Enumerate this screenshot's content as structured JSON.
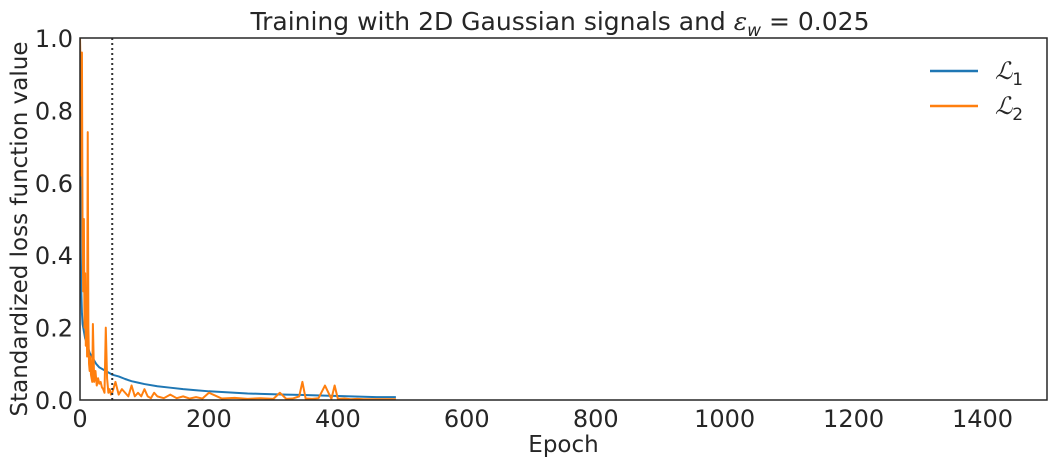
{
  "chart_data": {
    "type": "line",
    "title": "Training with 2D Gaussian signals and ε_w = 0.025",
    "title_parts": {
      "main": "Training with 2D Gaussian signals and ",
      "eps": "ε",
      "sub": "w",
      "eq": " = 0.025"
    },
    "xlabel": "Epoch",
    "ylabel": "Standardized loss function value",
    "xlim": [
      0,
      1500
    ],
    "ylim": [
      0,
      1.0
    ],
    "xticks": [
      0,
      200,
      400,
      600,
      800,
      1000,
      1200,
      1400
    ],
    "yticks": [
      0.0,
      0.2,
      0.4,
      0.6,
      0.8,
      1.0
    ],
    "ytick_labels": [
      "0.0",
      "0.2",
      "0.4",
      "0.6",
      "0.8",
      "1.0"
    ],
    "grid": false,
    "legend_position": "top-right",
    "vline": {
      "x": 50,
      "style": "dotted",
      "color": "#333333"
    },
    "series": [
      {
        "name": "ℒ₁",
        "name_parts": {
          "sym": "ℒ",
          "sub": "1"
        },
        "color": "#1f77b4",
        "x": [
          0,
          1,
          2,
          3,
          4,
          6,
          8,
          10,
          15,
          20,
          25,
          30,
          40,
          50,
          60,
          70,
          80,
          90,
          100,
          120,
          140,
          160,
          180,
          200,
          220,
          240,
          260,
          280,
          300,
          320,
          340,
          360,
          380,
          400,
          420,
          440,
          460,
          480,
          490
        ],
        "y": [
          1.0,
          0.45,
          0.3,
          0.24,
          0.21,
          0.19,
          0.17,
          0.16,
          0.13,
          0.115,
          0.1,
          0.09,
          0.08,
          0.07,
          0.065,
          0.058,
          0.052,
          0.048,
          0.044,
          0.038,
          0.034,
          0.03,
          0.027,
          0.024,
          0.022,
          0.02,
          0.018,
          0.017,
          0.016,
          0.015,
          0.014,
          0.013,
          0.012,
          0.011,
          0.01,
          0.009,
          0.008,
          0.008,
          0.008
        ]
      },
      {
        "name": "ℒ₂",
        "name_parts": {
          "sym": "ℒ",
          "sub": "2"
        },
        "color": "#ff7f0e",
        "x": [
          0,
          1,
          2,
          3,
          4,
          5,
          6,
          7,
          8,
          9,
          10,
          11,
          12,
          13,
          14,
          15,
          16,
          17,
          18,
          19,
          20,
          22,
          24,
          26,
          28,
          30,
          32,
          34,
          36,
          38,
          40,
          42,
          44,
          46,
          48,
          50,
          55,
          60,
          65,
          70,
          75,
          80,
          85,
          90,
          95,
          100,
          105,
          110,
          115,
          120,
          130,
          140,
          150,
          160,
          170,
          180,
          190,
          200,
          220,
          240,
          260,
          280,
          300,
          310,
          320,
          330,
          340,
          345,
          350,
          360,
          370,
          380,
          390,
          395,
          400,
          410,
          420,
          430,
          440,
          460,
          480,
          490
        ],
        "y": [
          1.0,
          0.9,
          0.62,
          0.96,
          0.45,
          0.3,
          0.5,
          0.2,
          0.35,
          0.15,
          0.28,
          0.12,
          0.74,
          0.2,
          0.1,
          0.08,
          0.12,
          0.07,
          0.06,
          0.05,
          0.21,
          0.05,
          0.08,
          0.04,
          0.06,
          0.045,
          0.05,
          0.035,
          0.03,
          0.02,
          0.2,
          0.06,
          0.02,
          0.03,
          0.015,
          0.02,
          0.05,
          0.015,
          0.03,
          0.02,
          0.01,
          0.04,
          0.01,
          0.02,
          0.01,
          0.03,
          0.01,
          0.005,
          0.02,
          0.01,
          0.005,
          0.015,
          0.005,
          0.01,
          0.004,
          0.008,
          0.004,
          0.02,
          0.004,
          0.006,
          0.003,
          0.005,
          0.003,
          0.02,
          0.003,
          0.004,
          0.01,
          0.05,
          0.004,
          0.003,
          0.005,
          0.04,
          0.003,
          0.04,
          0.003,
          0.004,
          0.002,
          0.003,
          0.002,
          0.002,
          0.002,
          0.002
        ]
      }
    ]
  }
}
